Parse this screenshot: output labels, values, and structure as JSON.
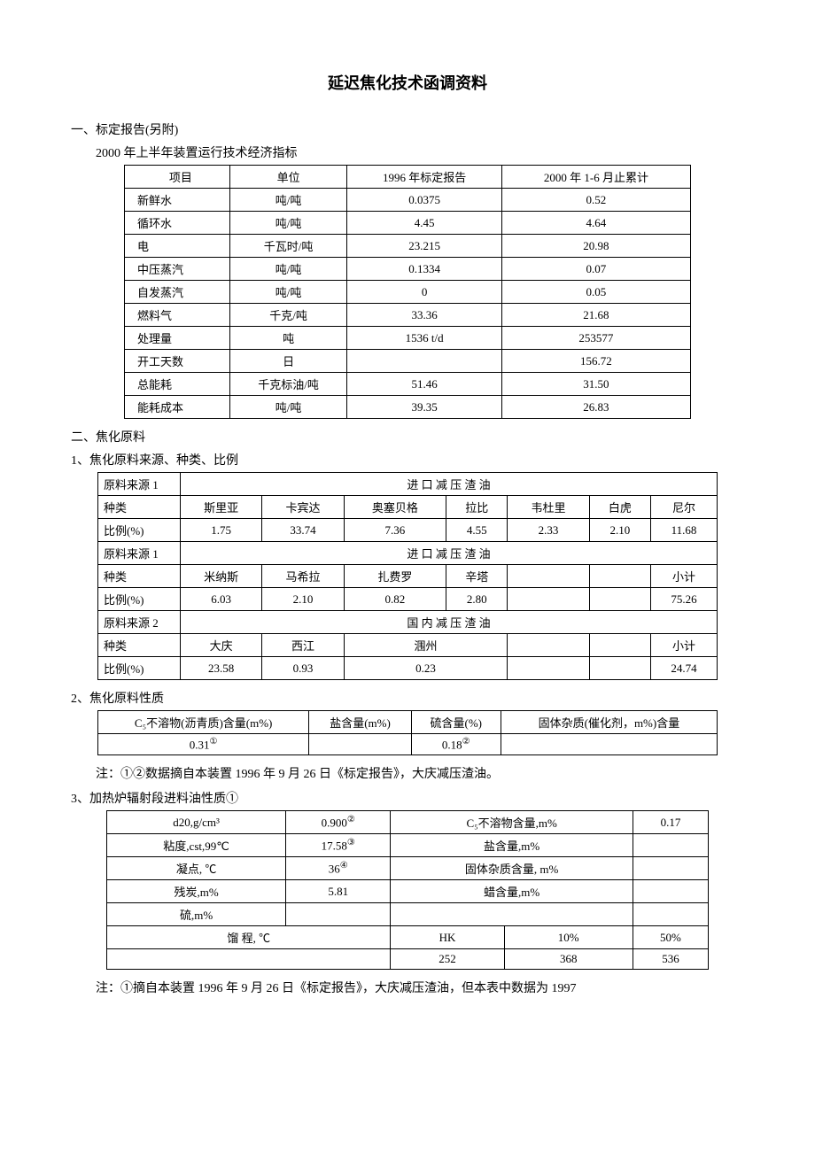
{
  "title": "延迟焦化技术函调资料",
  "section1": {
    "heading": "一、标定报告(另附)",
    "subtitle": "2000 年上半年装置运行技术经济指标",
    "columns": [
      "项目",
      "单位",
      "1996 年标定报告",
      "2000 年 1-6 月止累计"
    ],
    "rows": [
      [
        "新鲜水",
        "吨/吨",
        "0.0375",
        "0.52"
      ],
      [
        "循环水",
        "吨/吨",
        "4.45",
        "4.64"
      ],
      [
        "电",
        "千瓦时/吨",
        "23.215",
        "20.98"
      ],
      [
        "中压蒸汽",
        "吨/吨",
        "0.1334",
        "0.07"
      ],
      [
        "自发蒸汽",
        "吨/吨",
        "0",
        "0.05"
      ],
      [
        "燃料气",
        "千克/吨",
        "33.36",
        "21.68"
      ],
      [
        "处理量",
        "吨",
        "1536 t/d",
        "253577"
      ],
      [
        "开工天数",
        "日",
        "",
        "156.72"
      ],
      [
        "总能耗",
        "千克标油/吨",
        "51.46",
        "31.50"
      ],
      [
        "能耗成本",
        "吨/吨",
        "39.35",
        "26.83"
      ]
    ]
  },
  "section2": {
    "heading": "二、焦化原料",
    "sub1": {
      "heading": "1、焦化原料来源、种类、比例",
      "labels": {
        "source1": "原料来源 1",
        "source2": "原料来源 2",
        "kind": "种类",
        "ratio": "比例(%)",
        "import": "进 口 减 压 渣 油",
        "domestic": "国 内 减 压 渣 油",
        "subtotal": "小计"
      },
      "importKinds1": [
        "斯里亚",
        "卡宾达",
        "奥塞贝格",
        "拉比",
        "韦杜里",
        "白虎",
        "尼尔"
      ],
      "importRatios1": [
        "1.75",
        "33.74",
        "7.36",
        "4.55",
        "2.33",
        "2.10",
        "11.68"
      ],
      "importKinds2": [
        "米纳斯",
        "马希拉",
        "扎费罗",
        "辛塔",
        "",
        ""
      ],
      "importRatios2": [
        "6.03",
        "2.10",
        "0.82",
        "2.80",
        "",
        ""
      ],
      "importSubtotal": "75.26",
      "domesticKinds": [
        "大庆",
        "西江",
        "涠州",
        "",
        ""
      ],
      "domesticRatios": [
        "23.58",
        "0.93",
        "0.23",
        "",
        ""
      ],
      "domesticSubtotal": "24.74"
    },
    "sub2": {
      "heading": "2、焦化原料性质",
      "headers": [
        "C₅不溶物(沥青质)含量(m%)",
        "盐含量(m%)",
        "硫含量(%)",
        "固体杂质(催化剂，m%)含量"
      ],
      "values": [
        "0.31",
        "",
        "0.18",
        ""
      ],
      "sup1": "①",
      "sup2": "②",
      "note": "注：①②数据摘自本装置 1996 年 9 月 26 日《标定报告》，大庆减压渣油。"
    },
    "sub3": {
      "heading": "3、加热炉辐射段进料油性质①",
      "rows": [
        [
          "d20,g/cm³",
          "0.900",
          "②",
          "C₅不溶物含量,m%",
          "0.17"
        ],
        [
          "粘度,cst,99℃",
          "17.58",
          "③",
          "盐含量,m%",
          ""
        ],
        [
          "凝点, ℃",
          "36",
          "④",
          "固体杂质含量, m%",
          ""
        ],
        [
          "残炭,m%",
          "5.81",
          "",
          "蜡含量,m%",
          ""
        ],
        [
          "硫,m%",
          "",
          "",
          "",
          ""
        ]
      ],
      "range": {
        "label": "馏 程, ℃",
        "hk": "HK",
        "p10": "10%",
        "p50": "50%",
        "v1": "252",
        "v2": "368",
        "v3": "536"
      },
      "note": "注：①摘自本装置 1996 年 9 月 26 日《标定报告》，大庆减压渣油，但本表中数据为 1997"
    }
  }
}
